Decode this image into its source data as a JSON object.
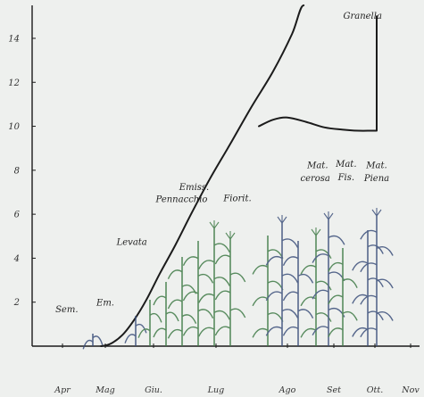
{
  "chart_data": {
    "type": "line",
    "title": "",
    "xlabel": "",
    "ylabel": "",
    "x_ticks": [
      "Apr",
      "Mag",
      "Giu.",
      "Lug",
      "Ago",
      "Set",
      "Ott.",
      "Nov"
    ],
    "y_ticks": [
      2,
      4,
      6,
      8,
      10,
      12,
      14
    ],
    "ylim": [
      0,
      15.5
    ],
    "grid": false,
    "legend": "none",
    "series": [
      {
        "points": [
          [
            0.9,
            0.0
          ],
          [
            1.1,
            0.1
          ],
          [
            1.35,
            0.5
          ],
          [
            1.6,
            1.2
          ],
          [
            1.85,
            2.1
          ],
          [
            2.1,
            3.3
          ],
          [
            2.35,
            4.6
          ],
          [
            2.6,
            6.0
          ],
          [
            2.9,
            7.6
          ],
          [
            3.2,
            9.2
          ],
          [
            3.5,
            10.9
          ],
          [
            3.8,
            12.5
          ],
          [
            4.1,
            14.2
          ],
          [
            4.35,
            15.5
          ]
        ]
      },
      {
        "points": [
          [
            3.6,
            10.0
          ],
          [
            3.8,
            10.3
          ],
          [
            4.0,
            10.4
          ],
          [
            4.4,
            10.2
          ],
          [
            4.8,
            9.95
          ],
          [
            5.2,
            9.85
          ],
          [
            5.6,
            9.8
          ],
          [
            5.9,
            9.8
          ],
          [
            6.05,
            9.8
          ],
          [
            6.05,
            15.0
          ]
        ]
      }
    ],
    "annotations": [
      {
        "text": "Sem.",
        "x": 0.1,
        "y": 1.55
      },
      {
        "text": "Em.",
        "x": 1.0,
        "y": 1.85
      },
      {
        "text": "Levata",
        "x": 1.55,
        "y": 4.6
      },
      {
        "text": "Emiss.",
        "x": 2.65,
        "y": 7.1
      },
      {
        "text": "Pennacchio",
        "x": 2.45,
        "y": 6.55
      },
      {
        "text": "Fiorit.",
        "x": 3.3,
        "y": 6.6
      },
      {
        "text": "Mat.",
        "x": 4.65,
        "y": 8.1
      },
      {
        "text": "cerosa",
        "x": 4.6,
        "y": 7.5
      },
      {
        "text": "Mat.",
        "x": 5.3,
        "y": 8.15
      },
      {
        "text": "Fis.",
        "x": 5.3,
        "y": 7.55
      },
      {
        "text": "Mat.",
        "x": 6.05,
        "y": 8.1
      },
      {
        "text": "Piena",
        "x": 6.05,
        "y": 7.5
      },
      {
        "text": "Granella",
        "x": 5.7,
        "y": 14.9
      }
    ]
  },
  "colors": {
    "ink": "#1b1b1b",
    "plant_green": "#3f7a46",
    "plant_blue": "#3b4f7a",
    "background": "#eef0ee"
  }
}
